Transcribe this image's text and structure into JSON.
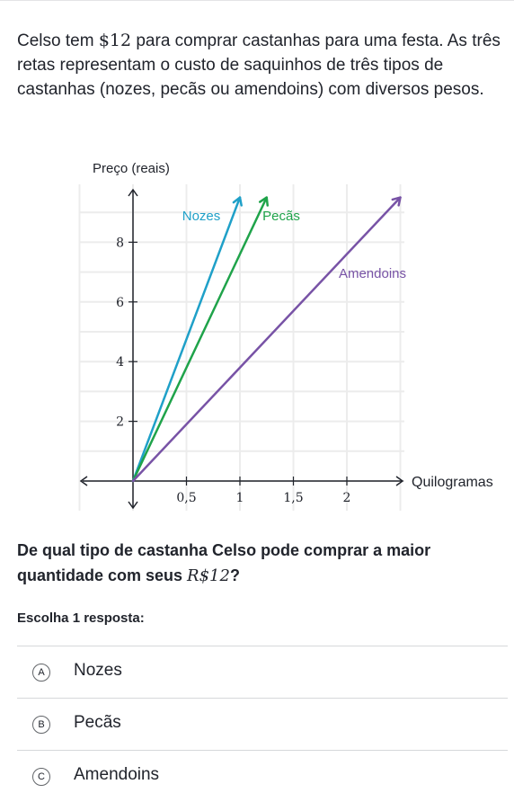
{
  "problem": {
    "text_before": "Celso tem ",
    "amount": "$12",
    "text_after": " para comprar castanhas para uma festa. As três retas representam o custo de saquinhos de três tipos de castanhas (nozes, pecãs ou amendoins) com diversos pesos."
  },
  "question": {
    "text": "De qual tipo de castanha Celso pode comprar a maior quantidade com seus ",
    "amount": "R$12",
    "end": "?"
  },
  "instruction": "Escolha 1 resposta:",
  "choices": [
    {
      "letter": "A",
      "label": "Nozes"
    },
    {
      "letter": "B",
      "label": "Pecãs"
    },
    {
      "letter": "C",
      "label": "Amendoins"
    }
  ],
  "chart_data": {
    "type": "line",
    "ylabel": "Preço (reais)",
    "xlabel": "Quilogramas",
    "xlim": [
      0,
      2.5
    ],
    "ylim": [
      0,
      9.5
    ],
    "grid": true,
    "x_ticks": [
      0.5,
      1,
      1.5,
      2
    ],
    "x_tick_labels": [
      "0,5",
      "1",
      "1,5",
      "2"
    ],
    "y_ticks": [
      2,
      4,
      6,
      8
    ],
    "y_tick_labels": [
      "2",
      "4",
      "6",
      "8"
    ],
    "series": [
      {
        "name": "Nozes",
        "color": "#1fa0c8",
        "points": [
          [
            0,
            0
          ],
          [
            1,
            9.5
          ]
        ]
      },
      {
        "name": "Pecãs",
        "color": "#1fa34a",
        "points": [
          [
            0,
            0
          ],
          [
            1.25,
            9.5
          ]
        ]
      },
      {
        "name": "Amendoins",
        "color": "#7853a6",
        "points": [
          [
            0,
            0
          ],
          [
            2.5,
            9.5
          ]
        ]
      }
    ]
  }
}
